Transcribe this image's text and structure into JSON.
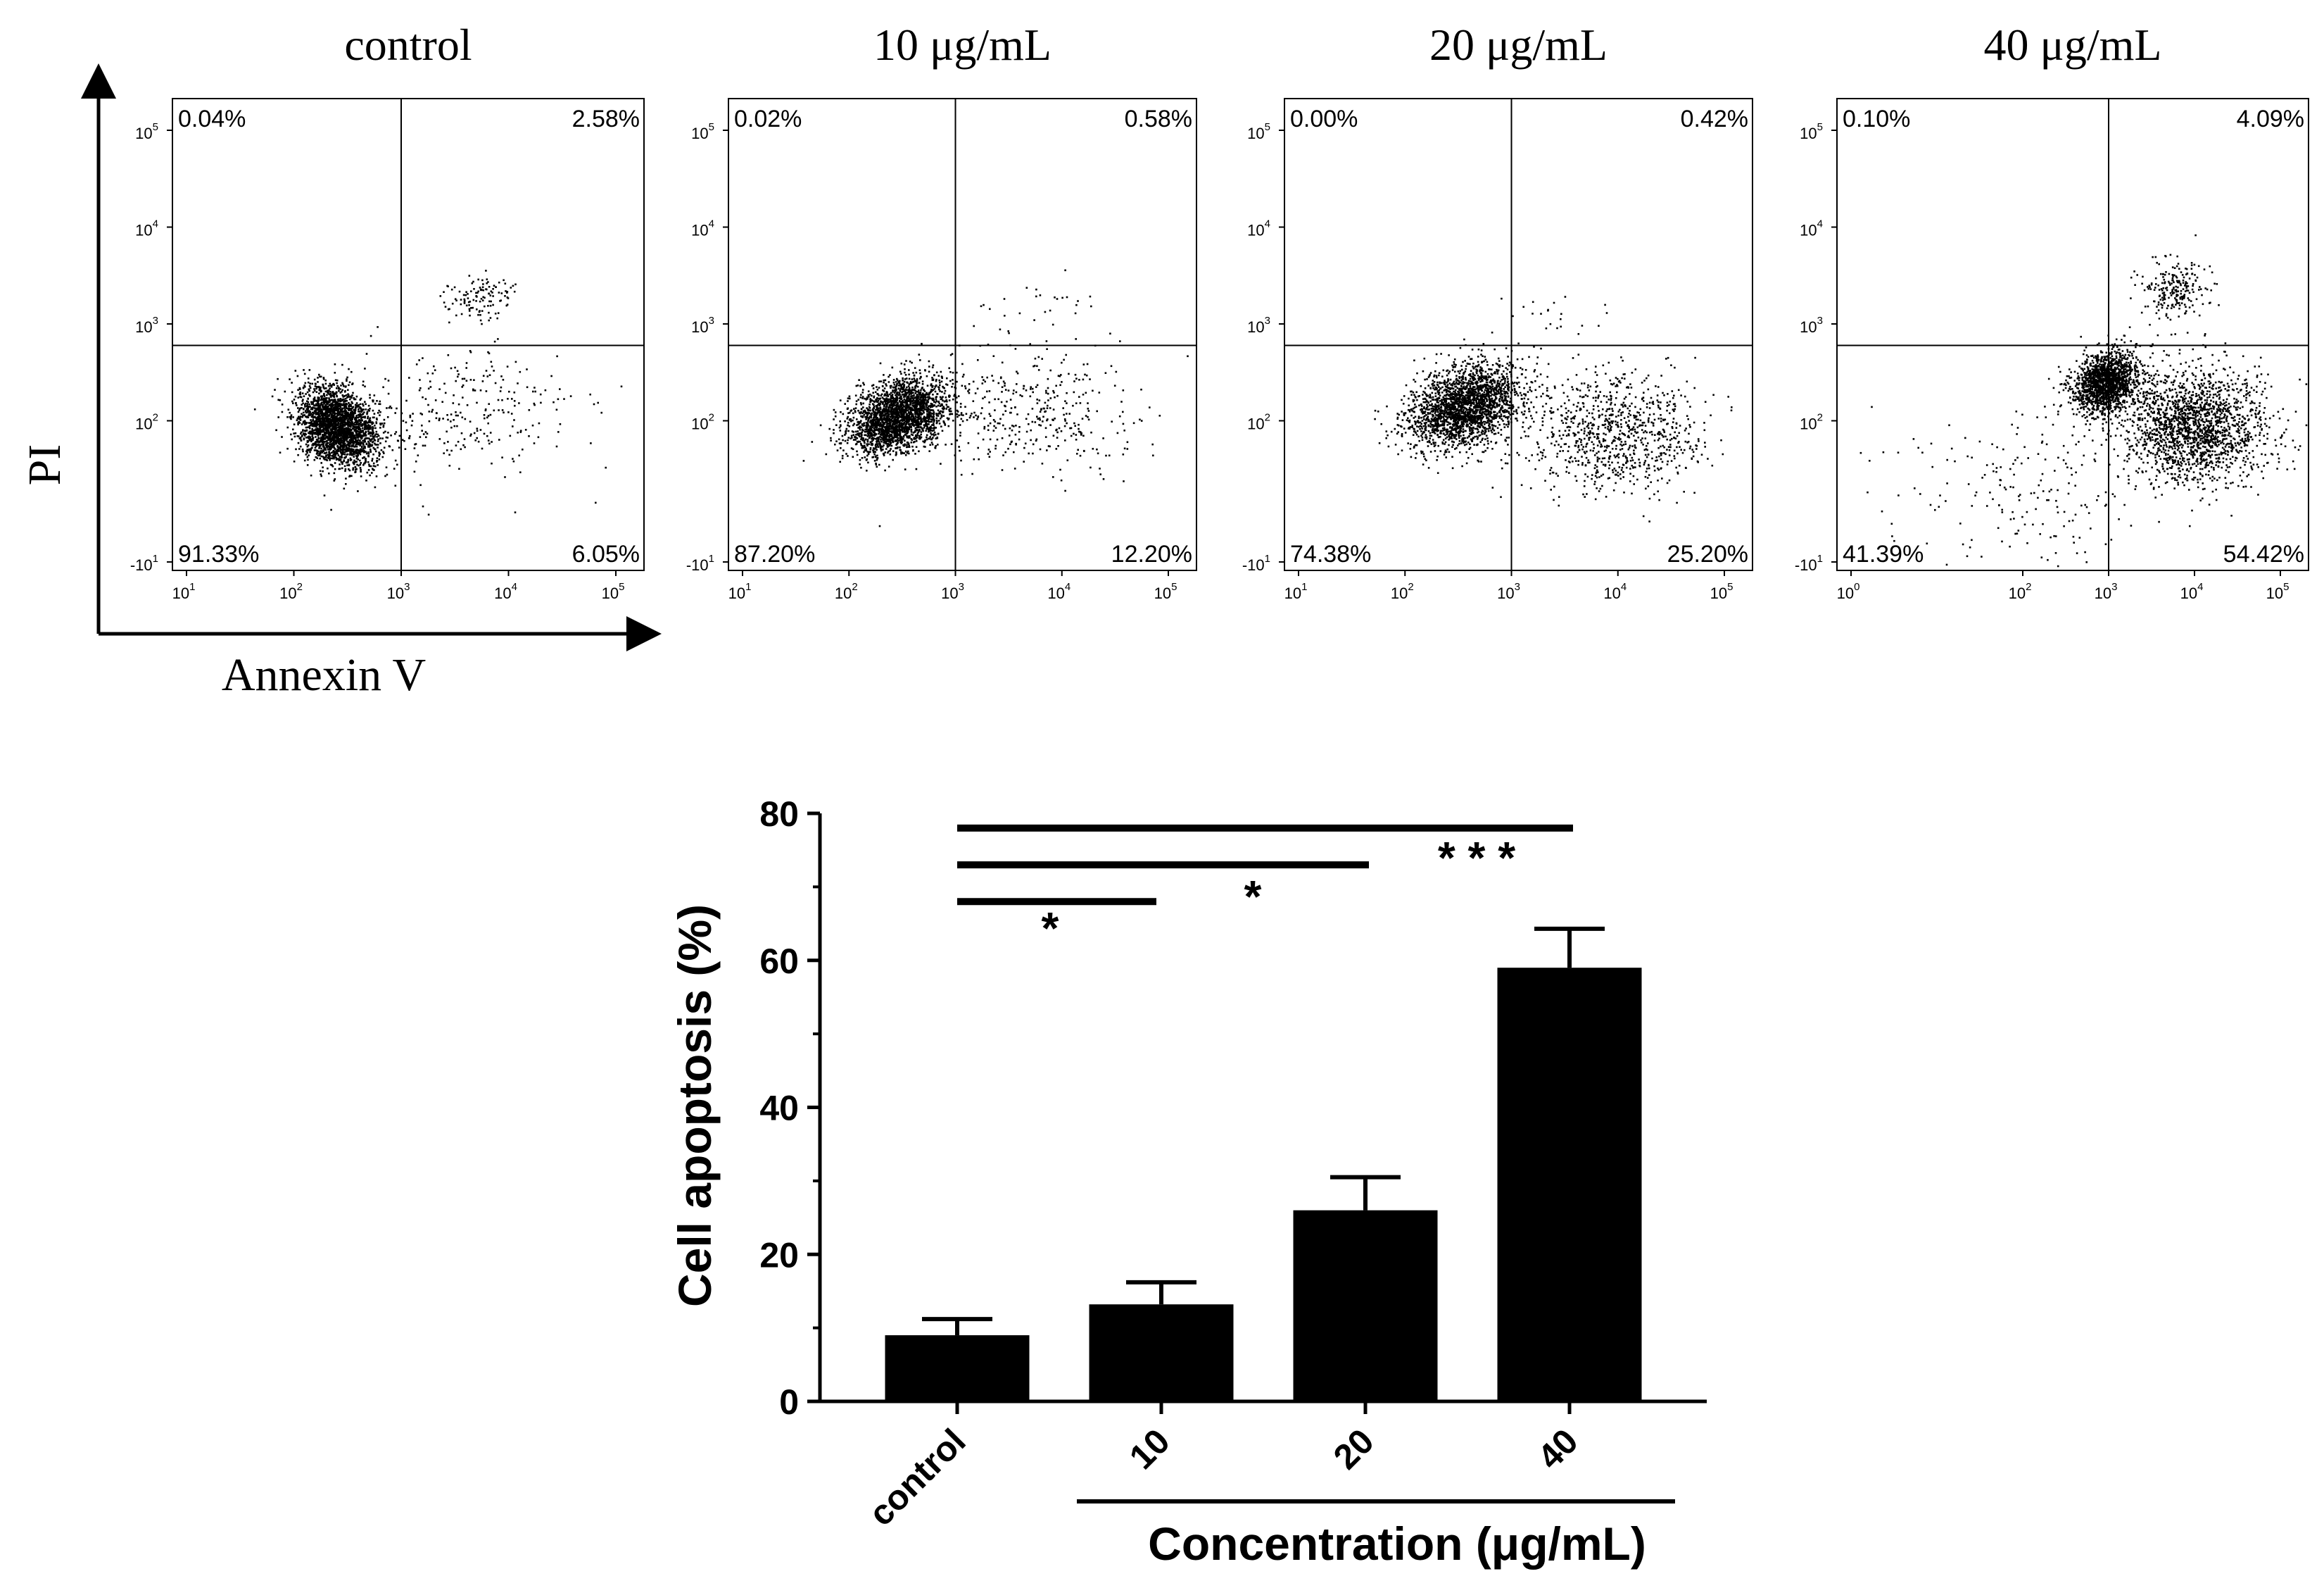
{
  "figure": {
    "flow_axis_labels": {
      "y": "PI",
      "x": "Annexin V"
    }
  },
  "chart_data": [
    {
      "type": "scatter",
      "kind": "flow-cytometry-quadrants",
      "panels": [
        {
          "title": "control",
          "quadrants": {
            "upper_left": "0.04%",
            "upper_right": "2.58%",
            "lower_left": "91.33%",
            "lower_right": "6.05%"
          },
          "x_ticks": [
            [
              "10",
              "1"
            ],
            [
              "10",
              "2"
            ],
            [
              "10",
              "3"
            ],
            [
              "10",
              "4"
            ],
            [
              "10",
              "5"
            ]
          ],
          "y_ticks": [
            [
              "10",
              "5"
            ],
            [
              "10",
              "4"
            ],
            [
              "10",
              "3"
            ],
            [
              "10",
              "2"
            ],
            [
              "-10",
              "1"
            ]
          ],
          "gate": {
            "x": 1000,
            "y": 600
          },
          "clusters": [
            {
              "cx": 2.4,
              "cy": 1.95,
              "sx": 0.17,
              "sy": 0.22,
              "n": 2600,
              "rot": 0.6
            },
            {
              "cx": 3.6,
              "cy": 2.1,
              "sx": 0.5,
              "sy": 0.3,
              "n": 260,
              "rot": 0.0
            },
            {
              "cx": 3.7,
              "cy": 3.3,
              "sx": 0.18,
              "sy": 0.1,
              "n": 120,
              "rot": 0.3
            }
          ]
        },
        {
          "title": "10 μg/mL",
          "quadrants": {
            "upper_left": "0.02%",
            "upper_right": "0.58%",
            "lower_left": "87.20%",
            "lower_right": "12.20%"
          },
          "x_ticks": [
            [
              "10",
              "1"
            ],
            [
              "10",
              "2"
            ],
            [
              "10",
              "3"
            ],
            [
              "10",
              "4"
            ],
            [
              "10",
              "5"
            ]
          ],
          "y_ticks": [
            [
              "10",
              "5"
            ],
            [
              "10",
              "4"
            ],
            [
              "10",
              "3"
            ],
            [
              "10",
              "2"
            ],
            [
              "-10",
              "1"
            ]
          ],
          "gate": {
            "x": 1000,
            "y": 600
          },
          "clusters": [
            {
              "cx": 2.45,
              "cy": 2.05,
              "sx": 0.25,
              "sy": 0.17,
              "n": 2500,
              "rot": 0.55
            },
            {
              "cx": 3.7,
              "cy": 2.1,
              "sx": 0.5,
              "sy": 0.32,
              "n": 380,
              "rot": 0.0
            },
            {
              "cx": 3.7,
              "cy": 3.1,
              "sx": 0.3,
              "sy": 0.15,
              "n": 25,
              "rot": 0.0
            }
          ]
        },
        {
          "title": "20 μg/mL",
          "quadrants": {
            "upper_left": "0.00%",
            "upper_right": "0.42%",
            "lower_left": "74.38%",
            "lower_right": "25.20%"
          },
          "x_ticks": [
            [
              "10",
              "1"
            ],
            [
              "10",
              "2"
            ],
            [
              "10",
              "3"
            ],
            [
              "10",
              "4"
            ],
            [
              "10",
              "5"
            ]
          ],
          "y_ticks": [
            [
              "10",
              "5"
            ],
            [
              "10",
              "4"
            ],
            [
              "10",
              "3"
            ],
            [
              "10",
              "2"
            ],
            [
              "-10",
              "1"
            ]
          ],
          "gate": {
            "x": 1000,
            "y": 600
          },
          "clusters": [
            {
              "cx": 2.55,
              "cy": 2.15,
              "sx": 0.28,
              "sy": 0.19,
              "n": 2300,
              "rot": 0.55
            },
            {
              "cx": 3.95,
              "cy": 1.9,
              "sx": 0.45,
              "sy": 0.3,
              "n": 900,
              "rot": 0.0
            },
            {
              "cx": 3.4,
              "cy": 3.1,
              "sx": 0.25,
              "sy": 0.12,
              "n": 20,
              "rot": 0.0
            }
          ]
        },
        {
          "title": "40 μg/mL",
          "quadrants": {
            "upper_left": "0.10%",
            "upper_right": "4.09%",
            "lower_left": "41.39%",
            "lower_right": "54.42%"
          },
          "x_ticks": [
            [
              "10",
              "0"
            ],
            [
              "10",
              "2"
            ],
            [
              "10",
              "3"
            ],
            [
              "10",
              "4"
            ],
            [
              "10",
              "5"
            ]
          ],
          "y_ticks": [
            [
              "10",
              "5"
            ],
            [
              "10",
              "4"
            ],
            [
              "10",
              "3"
            ],
            [
              "10",
              "2"
            ],
            [
              "-10",
              "1"
            ]
          ],
          "gate": {
            "x": 1000,
            "y": 600
          },
          "clusters": [
            {
              "cx": 2.95,
              "cy": 2.4,
              "sx": 0.2,
              "sy": 0.15,
              "n": 1600,
              "rot": 0.45
            },
            {
              "cx": 4.0,
              "cy": 1.95,
              "sx": 0.42,
              "sy": 0.3,
              "n": 1900,
              "rot": 0.0
            },
            {
              "cx": 3.75,
              "cy": 3.35,
              "sx": 0.18,
              "sy": 0.15,
              "n": 230,
              "rot": 0.2
            },
            {
              "cx": 2.2,
              "cy": 1.3,
              "sx": 0.7,
              "sy": 0.4,
              "n": 200,
              "rot": 0.0
            }
          ]
        }
      ]
    },
    {
      "type": "bar",
      "categories": [
        "control",
        "10",
        "20",
        "40"
      ],
      "values": [
        9,
        13.2,
        26,
        59
      ],
      "errors": [
        2.2,
        3.0,
        4.5,
        5.3
      ],
      "ylabel": "Cell apoptosis (%)",
      "xlabel": "Concentration (μg/mL)",
      "ylim": [
        0,
        80
      ],
      "yticks": [
        "0",
        "20",
        "40",
        "60",
        "80"
      ],
      "significance": [
        {
          "from": "control",
          "to": "10",
          "y": 68,
          "label": "*"
        },
        {
          "from": "control",
          "to": "20",
          "y": 73,
          "label": "*"
        },
        {
          "from": "control",
          "to": "40",
          "y": 78,
          "label": "* * *"
        }
      ]
    }
  ]
}
